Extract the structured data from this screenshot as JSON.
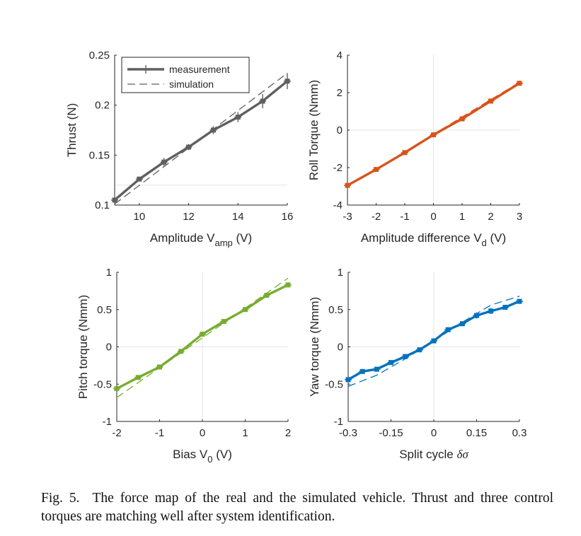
{
  "chart_data": [
    {
      "type": "line",
      "xlabel": "Amplitude V",
      "xlabel_sub": "amp",
      "xlabel_unit": " (V)",
      "ylabel": "Thrust (N)",
      "xlim": [
        9,
        16
      ],
      "ylim": [
        0.1,
        0.25
      ],
      "xticks": [
        10,
        12,
        14,
        16
      ],
      "xtick_labels": [
        "10",
        "12",
        "14",
        "16"
      ],
      "yticks": [
        0.1,
        0.15,
        0.2,
        0.25
      ],
      "ytick_labels": [
        "0.1",
        "0.15",
        "0.2",
        "0.25"
      ],
      "color": "#5f5f5f",
      "zero_x": null,
      "zero_y": 0.12,
      "legend": {
        "placement": "top-left",
        "entries": [
          "measurement",
          "simulation"
        ]
      },
      "series": [
        {
          "name": "measurement",
          "style": "solid",
          "marker": "plus",
          "x": [
            9,
            10,
            11,
            12,
            13,
            14,
            15,
            16
          ],
          "y": [
            0.105,
            0.126,
            0.143,
            0.158,
            0.175,
            0.188,
            0.204,
            0.224
          ],
          "err": [
            0.003,
            0.002,
            0.004,
            0.003,
            0.004,
            0.005,
            0.007,
            0.008
          ]
        },
        {
          "name": "simulation",
          "style": "dashed",
          "x": [
            9,
            16
          ],
          "y": [
            0.101,
            0.232
          ]
        }
      ]
    },
    {
      "type": "line",
      "xlabel": "Amplitude difference V",
      "xlabel_sub": "d",
      "xlabel_unit": " (V)",
      "ylabel": "Roll Torque (Nmm)",
      "xlim": [
        -3,
        3
      ],
      "ylim": [
        -4,
        4
      ],
      "xticks": [
        -3,
        -2,
        -1,
        0,
        1,
        2,
        3
      ],
      "xtick_labels": [
        "-3",
        "-2",
        "-1",
        "0",
        "1",
        "2",
        "3"
      ],
      "yticks": [
        -4,
        -2,
        0,
        2,
        4
      ],
      "ytick_labels": [
        "-4",
        "-2",
        "0",
        "2",
        "4"
      ],
      "color": "#d95319",
      "zero_x": 0,
      "zero_y": 0,
      "series": [
        {
          "style": "solid",
          "marker": "plus",
          "x": [
            -3,
            -2,
            -1,
            0,
            1,
            2,
            3
          ],
          "y": [
            -2.95,
            -2.1,
            -1.2,
            -0.25,
            0.6,
            1.55,
            2.5
          ],
          "err": [
            0.1,
            0.1,
            0.1,
            0.1,
            0.1,
            0.1,
            0.1
          ]
        },
        {
          "style": "dashed",
          "x": [
            -3,
            3
          ],
          "y": [
            -3.0,
            2.55
          ]
        }
      ]
    },
    {
      "type": "line",
      "xlabel": "Bias V",
      "xlabel_sub": "0",
      "xlabel_unit": " (V)",
      "ylabel": "Pitch torque (Nmm)",
      "xlim": [
        -2,
        2
      ],
      "ylim": [
        -1,
        1
      ],
      "xticks": [
        -2,
        -1,
        0,
        1,
        2
      ],
      "xtick_labels": [
        "-2",
        "-1",
        "0",
        "1",
        "2"
      ],
      "yticks": [
        -1,
        -0.5,
        0,
        0.5,
        1
      ],
      "ytick_labels": [
        "-1",
        "-0.5",
        "0",
        "0.5",
        "1"
      ],
      "color": "#77ac30",
      "zero_x": 0,
      "zero_y": 0,
      "series": [
        {
          "style": "solid",
          "marker": "plus",
          "x": [
            -2,
            -1.5,
            -1,
            -0.5,
            0,
            0.5,
            1,
            1.5,
            2
          ],
          "y": [
            -0.56,
            -0.41,
            -0.27,
            -0.06,
            0.17,
            0.34,
            0.5,
            0.69,
            0.83
          ],
          "err": [
            0.02,
            0.02,
            0.02,
            0.02,
            0.02,
            0.02,
            0.02,
            0.02,
            0.02
          ]
        },
        {
          "style": "dashed",
          "x": [
            -2,
            2
          ],
          "y": [
            -0.68,
            0.92
          ]
        }
      ]
    },
    {
      "type": "line",
      "xlabel": "Split cycle ",
      "xlabel_sym": "δσ",
      "xlabel_unit": "",
      "ylabel": "Yaw torque (Nmm)",
      "xlim": [
        -0.3,
        0.3
      ],
      "ylim": [
        -1,
        1
      ],
      "xticks": [
        -0.3,
        -0.15,
        0,
        0.15,
        0.3
      ],
      "xtick_labels": [
        "-0.3",
        "-0.15",
        "0",
        "0.15",
        "0.3"
      ],
      "yticks": [
        -1,
        -0.5,
        0,
        0.5,
        1
      ],
      "ytick_labels": [
        "-1",
        "-0.5",
        "0",
        "0.5",
        "1"
      ],
      "color": "#0072bd",
      "zero_x": 0,
      "zero_y": 0,
      "series": [
        {
          "style": "solid",
          "marker": "plus",
          "x": [
            -0.3,
            -0.25,
            -0.2,
            -0.15,
            -0.1,
            -0.05,
            0,
            0.05,
            0.1,
            0.15,
            0.2,
            0.25,
            0.3
          ],
          "y": [
            -0.44,
            -0.33,
            -0.3,
            -0.21,
            -0.13,
            -0.04,
            0.08,
            0.23,
            0.31,
            0.42,
            0.48,
            0.53,
            0.61
          ],
          "err": [
            0.02,
            0.02,
            0.02,
            0.02,
            0.02,
            0.02,
            0.03,
            0.03,
            0.03,
            0.04,
            0.04,
            0.03,
            0.03
          ]
        },
        {
          "style": "dashed",
          "x": [
            -0.3,
            -0.2,
            -0.1,
            0,
            0.1,
            0.2,
            0.3
          ],
          "y": [
            -0.53,
            -0.38,
            -0.16,
            0.08,
            0.33,
            0.56,
            0.68
          ]
        }
      ]
    }
  ],
  "caption": {
    "lead": "Fig. 5.",
    "text": "The force map of the real and the simulated vehicle. Thrust and three control torques are matching well after system identification."
  }
}
